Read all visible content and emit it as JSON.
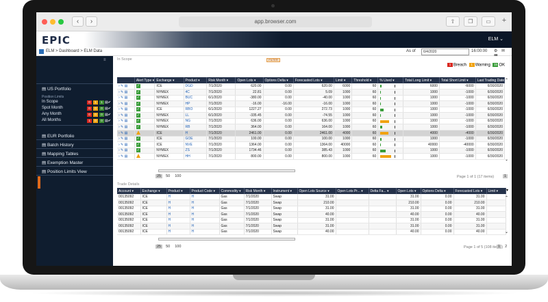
{
  "browser": {
    "url": "app.browser.com",
    "back": "‹",
    "forward": "›",
    "new_tab": "+"
  },
  "app": {
    "logo": "EPIC",
    "user": "ELM ⌄",
    "breadcrumb": "ELM > Dashboard > ELM Data",
    "as_of_label": "As of",
    "as_of_date": "6/4/2020",
    "as_of_time": "16:00:00",
    "header_icons": "⚙ ✉ ▦"
  },
  "sidebar": {
    "us_portfolio": "US Portfolio",
    "position_limits": "Position Limits",
    "rows": [
      {
        "label": "In Scope",
        "red": "0",
        "orange": "1",
        "green": "1"
      },
      {
        "label": "Spot Month",
        "red": "0",
        "orange": "0",
        "green": "0"
      },
      {
        "label": "Any Month",
        "red": "0",
        "orange": "0",
        "green": "0"
      },
      {
        "label": "All Months",
        "red": "1",
        "orange": "0",
        "green": "0"
      }
    ],
    "items": [
      "EUR Portfolio",
      "Batch History",
      "Mapping Tables",
      "Exemption Master",
      "Position Limits View"
    ]
  },
  "grid1": {
    "label": "In Scope",
    "filter_pill": "FILTER",
    "legend": {
      "breach_count": "1",
      "breach": "Breach",
      "warning_count": "1",
      "warning": "Warning",
      "ok_count": "15",
      "ok": "OK"
    },
    "headers": [
      "Alert Type",
      "Exchange",
      "Product",
      "Risk Month",
      "Open Lots",
      "Options Delta",
      "Forecasted Lots",
      "Limit",
      "Threshold",
      "% Used",
      "Total Long Limit",
      "Total Short Limit",
      "Last Trading Date"
    ],
    "rows": [
      {
        "alert": "ok",
        "exchange": "ICE",
        "product": "DGD",
        "risk_month": "7/1/2020",
        "open_lots": "620.00",
        "delta": "0.00",
        "forecast": "620.00",
        "limit": "6000",
        "threshold": "60",
        "pct_used": 0.1,
        "long": "6000",
        "short": "-6000",
        "last": "6/30/2020"
      },
      {
        "alert": "ok",
        "exchange": "NYMEX",
        "product": "4C",
        "risk_month": "7/1/2020",
        "open_lots": "22.81",
        "delta": "0.00",
        "forecast": "5.09",
        "limit": "1000",
        "threshold": "60",
        "pct_used": 0.02,
        "long": "1000",
        "short": "-1000",
        "last": "6/30/2020"
      },
      {
        "alert": "ok",
        "exchange": "NYMEX",
        "product": "BUC",
        "risk_month": "6/1/2020",
        "open_lots": "-380.00",
        "delta": "0.00",
        "forecast": "-40.00",
        "limit": "1000",
        "threshold": "60",
        "pct_used": 0.04,
        "long": "1000",
        "short": "-1000",
        "last": "6/30/2020"
      },
      {
        "alert": "ok",
        "exchange": "NYMEX",
        "product": "HP",
        "risk_month": "7/1/2020",
        "open_lots": "-16.00",
        "delta": "-16.00",
        "forecast": "-16.00",
        "limit": "1000",
        "threshold": "60",
        "pct_used": 0.02,
        "long": "1000",
        "short": "-1000",
        "last": "6/30/2020"
      },
      {
        "alert": "ok",
        "exchange": "ICE",
        "product": "RBO",
        "risk_month": "6/1/2020",
        "open_lots": "1227.27",
        "delta": "0.00",
        "forecast": "272.73",
        "limit": "1000",
        "threshold": "60",
        "pct_used": 0.27,
        "long": "1000",
        "short": "-1000",
        "last": "6/30/2020"
      },
      {
        "alert": "ok",
        "exchange": "NYMEX",
        "product": "LL",
        "risk_month": "6/1/2020",
        "open_lots": "-335.45",
        "delta": "0.00",
        "forecast": "-74.55",
        "limit": "1000",
        "threshold": "60",
        "pct_used": 0.07,
        "long": "1000",
        "short": "-1000",
        "last": "6/30/2020"
      },
      {
        "alert": "ok",
        "exchange": "NYMEX",
        "product": "NG",
        "risk_month": "7/1/2020",
        "open_lots": "636.00",
        "delta": "0.00",
        "forecast": "636.00",
        "limit": "1000",
        "threshold": "60",
        "pct_used": 0.64,
        "long": "1000",
        "short": "-1000",
        "last": "6/30/2020"
      },
      {
        "alert": "ok",
        "exchange": "NYMEX",
        "product": "RB",
        "risk_month": "7/1/2020",
        "open_lots": "364.00",
        "delta": "0.00",
        "forecast": "164.00",
        "limit": "1000",
        "threshold": "60",
        "pct_used": 0.16,
        "long": "1000",
        "short": "-1000",
        "last": "6/30/2020"
      },
      {
        "alert": "warn",
        "exchange": "ICE",
        "product": "H",
        "risk_month": "7/1/2020",
        "open_lots": "2461.00",
        "delta": "0.00",
        "forecast": "2461.00",
        "limit": "4000",
        "threshold": "60",
        "pct_used": 0.62,
        "long": "4000",
        "short": "-4000",
        "last": "6/30/2020"
      },
      {
        "alert": "ok",
        "exchange": "ICE",
        "product": "GOE",
        "risk_month": "7/1/2020",
        "open_lots": "100.00",
        "delta": "0.00",
        "forecast": "100.00",
        "limit": "1000",
        "threshold": "60",
        "pct_used": 0.1,
        "long": "1000",
        "short": "-1000",
        "last": "6/30/2020"
      },
      {
        "alert": "ok",
        "exchange": "ICE",
        "product": "NVE",
        "risk_month": "7/1/2020",
        "open_lots": "1364.00",
        "delta": "0.00",
        "forecast": "1364.00",
        "limit": "40000",
        "threshold": "60",
        "pct_used": 0.03,
        "long": "40000",
        "short": "-40000",
        "last": "6/30/2020"
      },
      {
        "alert": "ok",
        "exchange": "NYMEX",
        "product": "ZS",
        "risk_month": "7/1/2020",
        "open_lots": "1734.46",
        "delta": "0.00",
        "forecast": "385.43",
        "limit": "1000",
        "threshold": "60",
        "pct_used": 0.39,
        "long": "1000",
        "short": "-1000",
        "last": "6/30/2020"
      },
      {
        "alert": "warn",
        "exchange": "NYMEX",
        "product": "HH",
        "risk_month": "7/1/2020",
        "open_lots": "800.00",
        "delta": "0.00",
        "forecast": "800.00",
        "limit": "1000",
        "threshold": "60",
        "pct_used": 0.8,
        "long": "1000",
        "short": "-1000",
        "last": "6/30/2020"
      }
    ],
    "page_sizes": [
      "25",
      "50",
      "100"
    ],
    "page_info": "Page 1 of 1 (17 items)",
    "page_current": "1"
  },
  "grid2": {
    "label": "Trade Details",
    "headers": [
      "Account",
      "Exchange",
      "Product",
      "Product Code",
      "Commodity",
      "Risk Month",
      "Instrument",
      "Open Lots Source",
      "Open Lots Pr...",
      "Delta Fa...",
      "Open Lots",
      "Options Delta",
      "Forecasted Lots",
      "Limit"
    ],
    "rows": [
      [
        "00135092",
        "ICE",
        "H",
        "H",
        "Gas",
        "7/1/2020",
        "Swap",
        "31.00",
        "",
        "",
        "31.00",
        "0.00",
        "31.00"
      ],
      [
        "00135092",
        "ICE",
        "H",
        "H",
        "Gas",
        "7/1/2020",
        "Swap",
        "210.00",
        "",
        "",
        "210.00",
        "0.00",
        "210.00"
      ],
      [
        "00135092",
        "ICE",
        "H",
        "H",
        "Gas",
        "7/1/2020",
        "Swap",
        "31.00",
        "",
        "",
        "31.00",
        "0.00",
        "31.00"
      ],
      [
        "00135092",
        "ICE",
        "H",
        "H",
        "Gas",
        "7/1/2020",
        "Swap",
        "40.00",
        "",
        "",
        "40.00",
        "0.00",
        "40.00"
      ],
      [
        "00135092",
        "ICE",
        "H",
        "H",
        "Gas",
        "7/1/2020",
        "Swap",
        "31.00",
        "",
        "",
        "31.00",
        "0.00",
        "31.00"
      ],
      [
        "00135092",
        "ICE",
        "H",
        "H",
        "Gas",
        "7/1/2020",
        "Swap",
        "31.00",
        "",
        "",
        "31.00",
        "0.00",
        "31.00"
      ],
      [
        "00135092",
        "ICE",
        "H",
        "H",
        "Gas",
        "7/1/2020",
        "Swap",
        "40.00",
        "",
        "",
        "40.00",
        "0.00",
        "40.00"
      ]
    ],
    "page_sizes": [
      "25",
      "50",
      "100"
    ],
    "page_info": "Page 1 of 5 (108 items)",
    "pages": [
      "1",
      "2",
      "3",
      "4",
      "5"
    ]
  },
  "colors": {
    "ok": "#3a9d3a",
    "warn": "#f0a210",
    "breach": "#d9271f",
    "header": "#25324a",
    "sidebar": "#0f1d2f"
  }
}
